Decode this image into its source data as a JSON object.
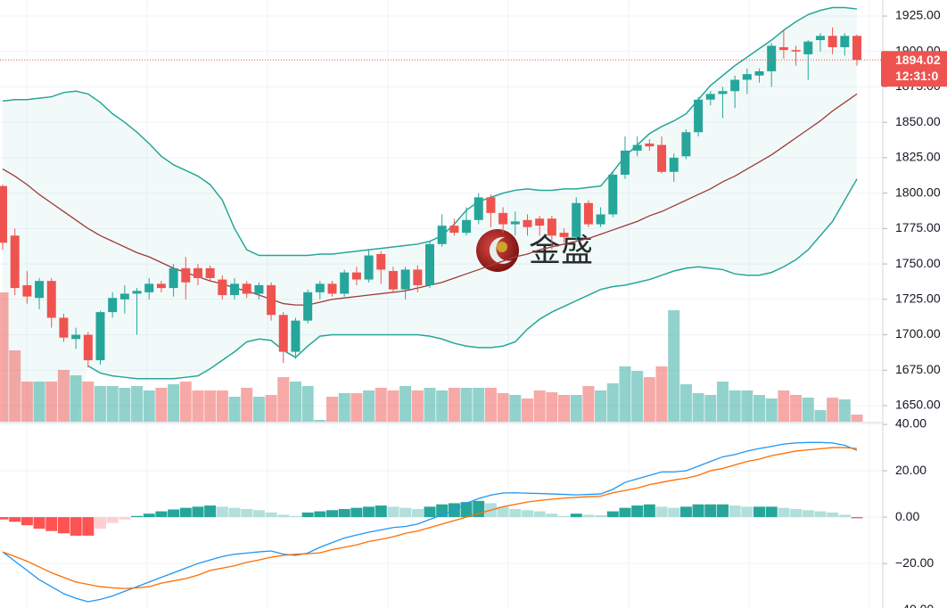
{
  "chart_data": [
    {
      "type": "candlestick",
      "watermark": "金盛",
      "up_color": "#26a69a",
      "down_color": "#ef5350",
      "band_color": "#26a69a",
      "middle_color": "#9c3b36",
      "ylim": [
        1638.65,
        1936.33
      ],
      "yticks": [
        {
          "value": 1650,
          "label": "1650.00"
        },
        {
          "value": 1675,
          "label": "1675.00"
        },
        {
          "value": 1700,
          "label": "1700.00"
        },
        {
          "value": 1725,
          "label": "1725.00"
        },
        {
          "value": 1750,
          "label": "1750.00"
        },
        {
          "value": 1775,
          "label": "1775.00"
        },
        {
          "value": 1800,
          "label": "1800.00"
        },
        {
          "value": 1825,
          "label": "1825.00"
        },
        {
          "value": 1850,
          "label": "1850.00"
        },
        {
          "value": 1875,
          "label": "1875.00"
        },
        {
          "value": 1900,
          "label": "1900.00"
        },
        {
          "value": 1925,
          "label": "1925.00"
        }
      ],
      "grid": true,
      "last_price": {
        "value": 1894.02,
        "label": "1894.02"
      },
      "countdown": "12:31:0",
      "open": [
        1805,
        1770,
        1735,
        1726,
        1738,
        1712,
        1697,
        1700,
        1682,
        1716,
        1725,
        1729,
        1730,
        1736,
        1733,
        1747,
        1747,
        1747,
        1739,
        1728,
        1736,
        1729,
        1735,
        1714,
        1688,
        1710,
        1730,
        1736,
        1729,
        1744,
        1739,
        1757,
        1745,
        1732,
        1746,
        1735,
        1764,
        1777,
        1772,
        1781,
        1797,
        1786,
        1778,
        1781,
        1782,
        1782,
        1772,
        1769,
        1793,
        1778,
        1785,
        1813,
        1830,
        1835,
        1834,
        1815,
        1826,
        1843,
        1866,
        1870,
        1872,
        1880,
        1883,
        1886,
        1903,
        1901,
        1898,
        1908,
        1911,
        1903,
        1911
      ],
      "high": [
        1806,
        1775,
        1745,
        1740,
        1740,
        1715,
        1705,
        1702,
        1717,
        1730,
        1735,
        1733,
        1740,
        1738,
        1750,
        1755,
        1750,
        1749,
        1742,
        1740,
        1738,
        1737,
        1737,
        1716,
        1712,
        1732,
        1738,
        1738,
        1746,
        1748,
        1760,
        1759,
        1748,
        1748,
        1749,
        1766,
        1785,
        1782,
        1790,
        1800,
        1799,
        1790,
        1787,
        1785,
        1784,
        1784,
        1775,
        1797,
        1795,
        1790,
        1815,
        1840,
        1840,
        1838,
        1840,
        1828,
        1845,
        1868,
        1872,
        1875,
        1883,
        1888,
        1888,
        1906,
        1915,
        1904,
        1908,
        1913,
        1917,
        1913,
        1912
      ],
      "low": [
        1760,
        1728,
        1722,
        1718,
        1705,
        1695,
        1690,
        1677,
        1679,
        1712,
        1715,
        1700,
        1725,
        1730,
        1727,
        1725,
        1735,
        1738,
        1725,
        1725,
        1726,
        1725,
        1710,
        1680,
        1683,
        1708,
        1725,
        1727,
        1727,
        1735,
        1737,
        1736,
        1730,
        1725,
        1730,
        1733,
        1762,
        1770,
        1770,
        1778,
        1776,
        1772,
        1770,
        1770,
        1770,
        1760,
        1765,
        1766,
        1776,
        1776,
        1783,
        1810,
        1826,
        1830,
        1814,
        1808,
        1824,
        1840,
        1862,
        1853,
        1860,
        1870,
        1878,
        1875,
        1895,
        1890,
        1880,
        1900,
        1898,
        1897,
        1890
      ],
      "close": [
        1765,
        1733,
        1727,
        1738,
        1712,
        1698,
        1700,
        1682,
        1716,
        1726,
        1729,
        1731,
        1736,
        1733,
        1747,
        1737,
        1740,
        1740,
        1728,
        1736,
        1729,
        1735,
        1714,
        1688,
        1710,
        1730,
        1736,
        1729,
        1744,
        1739,
        1756,
        1746,
        1732,
        1746,
        1735,
        1764,
        1777,
        1772,
        1781,
        1797,
        1786,
        1778,
        1780,
        1776,
        1777,
        1770,
        1769,
        1793,
        1778,
        1785,
        1813,
        1830,
        1834,
        1833,
        1815,
        1825,
        1843,
        1866,
        1870,
        1872,
        1880,
        1884,
        1886,
        1904,
        1901,
        1900,
        1907,
        1911,
        1903,
        1911,
        1894.02
      ],
      "upper_band": [
        1865,
        1866,
        1866,
        1867,
        1868,
        1871,
        1872,
        1870,
        1864,
        1856,
        1850,
        1843,
        1835,
        1826,
        1820,
        1816,
        1812,
        1806,
        1795,
        1775,
        1760,
        1756,
        1756,
        1756,
        1756,
        1756,
        1757,
        1757,
        1758,
        1759,
        1760,
        1761,
        1762,
        1763,
        1764,
        1766,
        1770,
        1778,
        1788,
        1794,
        1797,
        1800,
        1802,
        1803,
        1802,
        1802,
        1803,
        1803,
        1804,
        1805,
        1815,
        1826,
        1834,
        1842,
        1847,
        1851,
        1856,
        1866,
        1876,
        1883,
        1890,
        1896,
        1902,
        1908,
        1915,
        1921,
        1926,
        1929,
        1931,
        1931,
        1930
      ],
      "middle_band": [
        1817,
        1812,
        1806,
        1799,
        1793,
        1787,
        1781,
        1775,
        1770,
        1766,
        1762,
        1758,
        1755,
        1751,
        1747,
        1744,
        1741,
        1738,
        1736,
        1733,
        1731,
        1728,
        1725,
        1722,
        1721,
        1721,
        1723,
        1725,
        1726,
        1727,
        1728,
        1729,
        1730,
        1731,
        1733,
        1735,
        1737,
        1740,
        1743,
        1746,
        1749,
        1752,
        1755,
        1757,
        1760,
        1762,
        1764,
        1766,
        1768,
        1771,
        1774,
        1777,
        1780,
        1784,
        1787,
        1791,
        1795,
        1799,
        1803,
        1808,
        1812,
        1817,
        1822,
        1827,
        1833,
        1839,
        1845,
        1851,
        1858,
        1864,
        1870
      ],
      "lower_band": [
        null,
        null,
        null,
        null,
        null,
        null,
        null,
        1678,
        1673,
        1671,
        1670,
        1669,
        1669,
        1669,
        1669,
        1670,
        1671,
        1676,
        1682,
        1688,
        1695,
        1697,
        1696,
        1689,
        1684,
        1692,
        1699,
        1700,
        1700,
        1700,
        1700,
        1700,
        1700,
        1700,
        1700,
        1699,
        1697,
        1694,
        1692,
        1691,
        1691,
        1692,
        1695,
        1704,
        1711,
        1716,
        1720,
        1724,
        1728,
        1732,
        1734,
        1735,
        1737,
        1739,
        1742,
        1745,
        1747,
        1748,
        1747,
        1746,
        1743,
        1742,
        1742,
        1744,
        1748,
        1753,
        1760,
        1770,
        1780,
        1795,
        1810
      ],
      "volume": [
        145,
        80,
        45,
        45,
        45,
        58,
        52,
        45,
        40,
        40,
        38,
        40,
        35,
        38,
        42,
        45,
        35,
        35,
        35,
        28,
        38,
        28,
        30,
        50,
        45,
        40,
        2,
        28,
        32,
        32,
        35,
        38,
        35,
        40,
        35,
        38,
        35,
        38,
        38,
        38,
        38,
        32,
        30,
        26,
        35,
        33,
        30,
        30,
        40,
        35,
        43,
        62,
        57,
        50,
        62,
        125,
        42,
        32,
        30,
        45,
        35,
        35,
        30,
        26,
        35,
        30,
        27,
        13,
        27,
        25,
        8
      ]
    },
    {
      "type": "macd",
      "ylim": [
        -39.2,
        40.4
      ],
      "yticks": [
        {
          "value": 40,
          "label": "40.00"
        },
        {
          "value": 20,
          "label": "20.00"
        },
        {
          "value": 0,
          "label": "0.00"
        },
        {
          "value": -20,
          "label": "−20.00"
        },
        {
          "value": -40,
          "label": "−40.00"
        }
      ],
      "grid": true,
      "hist_colors": [
        "#26a69a",
        "#b2dfdb",
        "#ff5252",
        "#ffcdd2"
      ],
      "histogram": [
        -1,
        -2,
        -3.5,
        -5,
        -6,
        -7,
        -8,
        -8,
        -5,
        -2.5,
        -1,
        0.5,
        1.5,
        2.5,
        3.3,
        4,
        4.5,
        5,
        4.5,
        4,
        3.5,
        3,
        2,
        1,
        0.5,
        2,
        2.5,
        3,
        3.5,
        4,
        4.5,
        5,
        4.5,
        4,
        3.5,
        4.5,
        5.5,
        6,
        6.5,
        7,
        6,
        4.5,
        3.5,
        3,
        2.5,
        1.5,
        0.5,
        1.5,
        1,
        0.8,
        2.5,
        4,
        5,
        5.5,
        4.5,
        4,
        4.5,
        5.5,
        5.5,
        5.5,
        5,
        4.5,
        4.5,
        4.5,
        4,
        3.5,
        3,
        2.5,
        2,
        1,
        -0.5
      ],
      "series": [
        {
          "color": "#2196f3",
          "values": [
            -15,
            -19,
            -23,
            -27,
            -30,
            -33,
            -35,
            -36.5,
            -35.5,
            -34,
            -32,
            -30,
            -28,
            -26,
            -24,
            -22,
            -20,
            -18.5,
            -17,
            -16,
            -15.5,
            -15,
            -14.6,
            -16,
            -16.5,
            -15.5,
            -13,
            -11,
            -9,
            -7.7,
            -6.5,
            -5.5,
            -4.5,
            -4,
            -3,
            -1,
            1,
            3,
            6,
            8,
            9.5,
            10.4,
            10.5,
            10.3,
            10.2,
            10,
            9.8,
            9.6,
            9.8,
            10,
            12,
            15,
            16.5,
            18,
            19.5,
            19.5,
            20,
            22,
            24,
            26,
            27,
            28.5,
            29.6,
            30.5,
            31.5,
            32,
            32.2,
            32.2,
            32,
            31,
            28.8
          ]
        },
        {
          "color": "#ff6d00",
          "values": [
            -15,
            -17,
            -19,
            -21.5,
            -24,
            -26,
            -28,
            -29,
            -30,
            -30.5,
            -30.8,
            -30.5,
            -30,
            -28.5,
            -27.5,
            -26.5,
            -25,
            -23,
            -22,
            -21,
            -19.5,
            -18.5,
            -17.3,
            -16.5,
            -16,
            -15.8,
            -15.4,
            -14,
            -13,
            -12,
            -10.5,
            -9.6,
            -8.5,
            -7,
            -6,
            -4.5,
            -3,
            -1.5,
            0,
            1.5,
            3,
            4.5,
            5.5,
            6.5,
            7.2,
            7.7,
            8.2,
            8.5,
            8.8,
            9,
            10.5,
            11.5,
            12.5,
            14,
            15,
            16,
            16.8,
            18,
            20,
            21,
            22.5,
            24,
            25,
            26.5,
            27.5,
            28.5,
            29,
            29.5,
            30,
            30,
            29.6
          ]
        }
      ]
    }
  ]
}
